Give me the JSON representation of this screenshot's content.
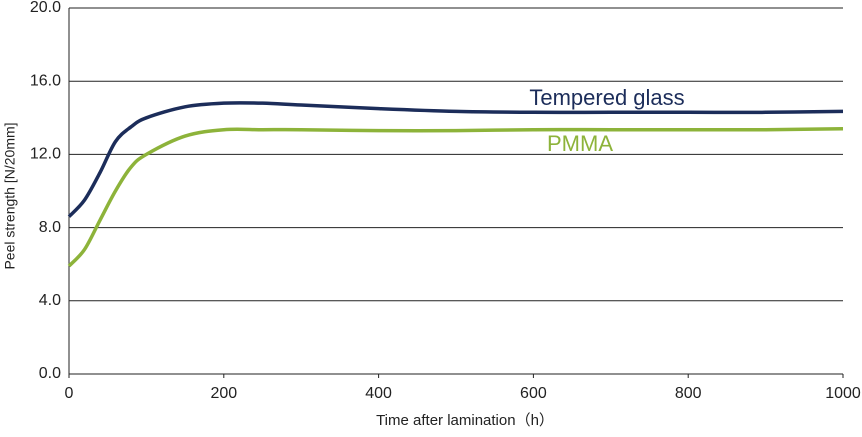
{
  "chart_data": {
    "type": "line",
    "xlabel": "Time after lamination（h）",
    "ylabel": "Peel strength [N/20mm]",
    "x": [
      0,
      20,
      40,
      60,
      80,
      100,
      150,
      200,
      250,
      300,
      400,
      500,
      600,
      700,
      800,
      900,
      1000
    ],
    "series": [
      {
        "name": "Tempered glass",
        "color": "#1c2d5a",
        "values": [
          8.6,
          9.5,
          11.0,
          12.7,
          13.5,
          14.0,
          14.6,
          14.8,
          14.8,
          14.7,
          14.5,
          14.35,
          14.3,
          14.3,
          14.3,
          14.3,
          14.35
        ]
      },
      {
        "name": "PMMA",
        "color": "#8db33a",
        "values": [
          5.9,
          6.8,
          8.4,
          10.0,
          11.3,
          12.0,
          13.0,
          13.35,
          13.35,
          13.35,
          13.3,
          13.3,
          13.35,
          13.35,
          13.35,
          13.35,
          13.4
        ]
      }
    ],
    "xlim": [
      0,
      1000
    ],
    "xticks": [
      0,
      200,
      400,
      600,
      800,
      1000
    ],
    "ylim": [
      0,
      20
    ],
    "yticks": [
      {
        "value": 0,
        "label": "0.0"
      },
      {
        "value": 4,
        "label": "4.0"
      },
      {
        "value": 8,
        "label": "8.0"
      },
      {
        "value": 12,
        "label": "12.0"
      },
      {
        "value": 16,
        "label": "16.0"
      },
      {
        "value": 20,
        "label": "20.0"
      }
    ],
    "grid": true
  }
}
